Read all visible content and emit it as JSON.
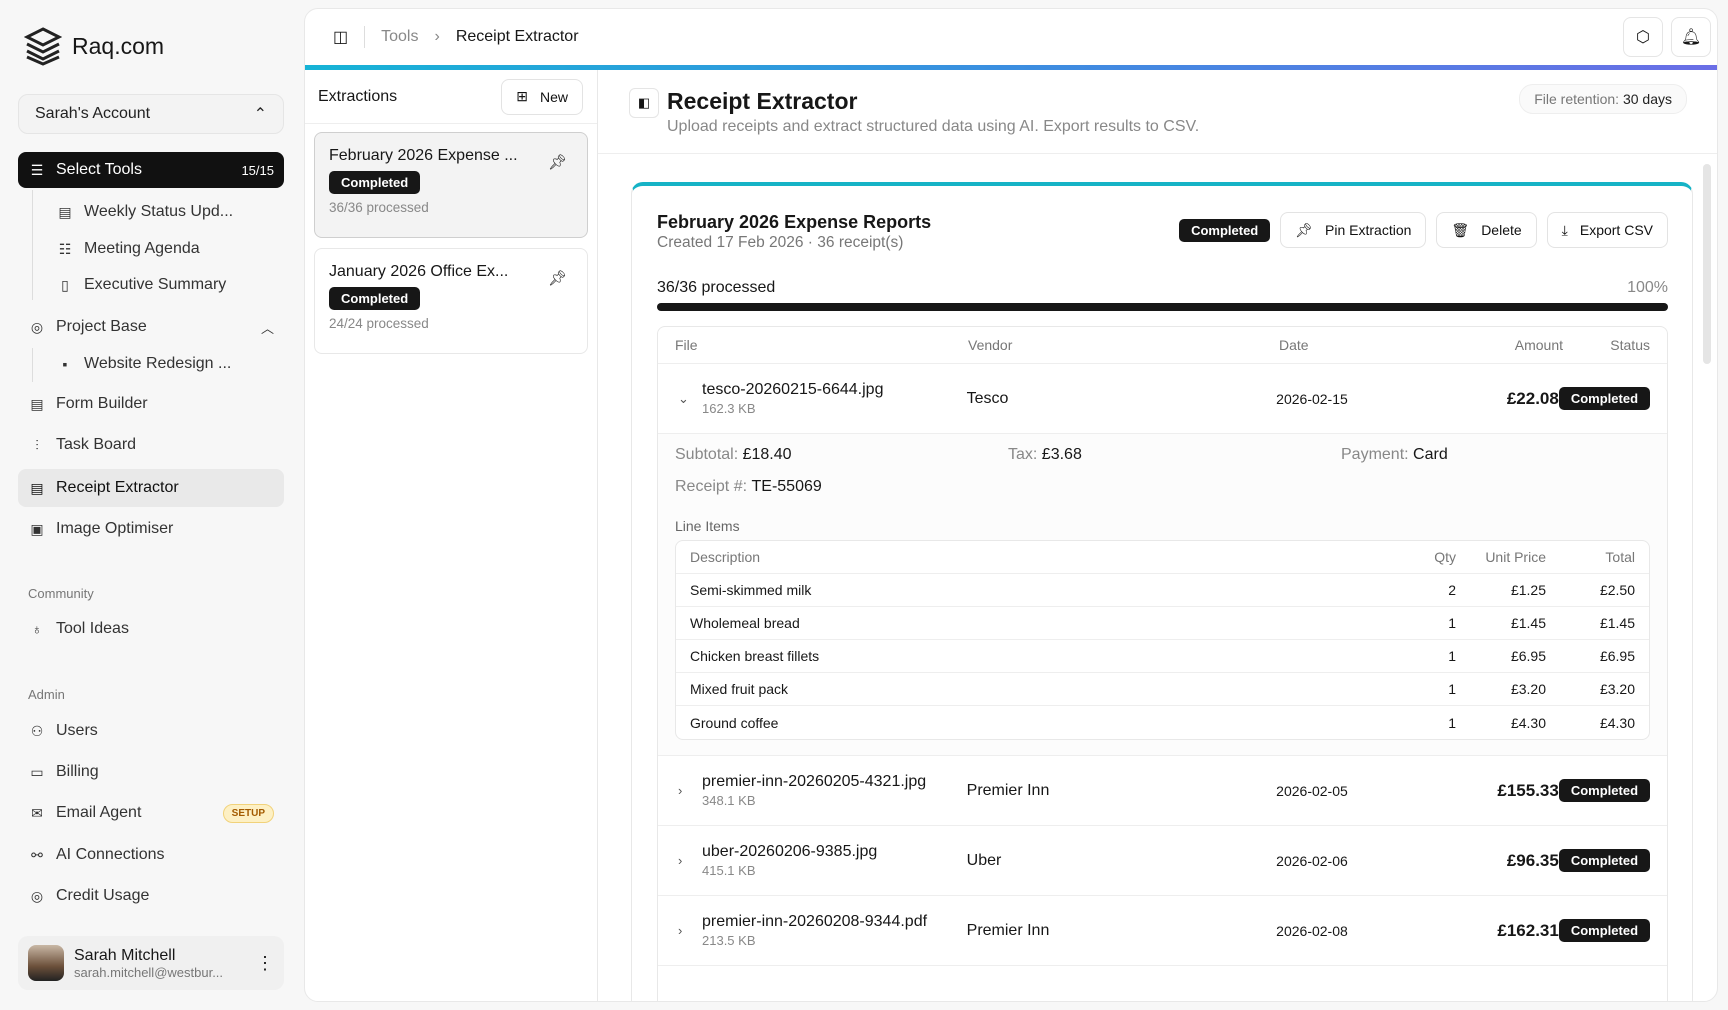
{
  "brand": "Raq.com",
  "account": "Sarah's Account",
  "nav": {
    "select_tools": {
      "label": "Select Tools",
      "count": "15/15"
    },
    "sub_tools": [
      "Weekly Status Upd...",
      "Meeting Agenda",
      "Executive Summary"
    ],
    "project_base": "Project Base",
    "project_sub": "Website Redesign ...",
    "items": [
      "Form Builder",
      "Task Board",
      "Receipt Extractor",
      "Image Optimiser"
    ],
    "community_label": "Community",
    "community": [
      "Tool Ideas"
    ],
    "admin_label": "Admin",
    "admin": [
      "Users",
      "Billing",
      "Email Agent",
      "AI Connections",
      "Credit Usage"
    ],
    "setup_badge": "SETUP"
  },
  "user": {
    "name": "Sarah Mitchell",
    "email": "sarah.mitchell@westbur..."
  },
  "breadcrumb": [
    "Tools",
    "Receipt Extractor"
  ],
  "extractions": {
    "title": "Extractions",
    "new_label": "New",
    "items": [
      {
        "title": "February 2026 Expense ...",
        "status": "Completed",
        "processed": "36/36 processed"
      },
      {
        "title": "January 2026 Office Ex...",
        "status": "Completed",
        "processed": "24/24 processed"
      }
    ]
  },
  "page": {
    "title": "Receipt Extractor",
    "description": "Upload receipts and extract structured data using AI. Export results to CSV.",
    "retention_label": "File retention:",
    "retention_value": "30 days"
  },
  "report": {
    "title": "February 2026 Expense Reports",
    "subtitle": "Created 17 Feb 2026 · 36 receipt(s)",
    "status": "Completed",
    "pin_label": "Pin Extraction",
    "delete_label": "Delete",
    "export_label": "Export CSV",
    "progress_label": "36/36 processed",
    "progress_pct": "100%",
    "progress_value": 100,
    "columns": [
      "File",
      "Vendor",
      "Date",
      "Amount",
      "Status"
    ],
    "rows": [
      {
        "file": "tesco-20260215-6644.jpg",
        "size": "162.3 KB",
        "vendor": "Tesco",
        "date": "2026-02-15",
        "amount": "£22.08",
        "status": "Completed"
      },
      {
        "file": "premier-inn-20260205-4321.jpg",
        "size": "348.1 KB",
        "vendor": "Premier Inn",
        "date": "2026-02-05",
        "amount": "£155.33",
        "status": "Completed"
      },
      {
        "file": "uber-20260206-9385.jpg",
        "size": "415.1 KB",
        "vendor": "Uber",
        "date": "2026-02-06",
        "amount": "£96.35",
        "status": "Completed"
      },
      {
        "file": "premier-inn-20260208-9344.pdf",
        "size": "213.5 KB",
        "vendor": "Premier Inn",
        "date": "2026-02-08",
        "amount": "£162.31",
        "status": "Completed"
      }
    ],
    "detail": {
      "subtotal_label": "Subtotal:",
      "subtotal": "£18.40",
      "tax_label": "Tax:",
      "tax": "£3.68",
      "payment_label": "Payment:",
      "payment": "Card",
      "receipt_label": "Receipt #:",
      "receipt": "TE-55069",
      "line_items_label": "Line Items",
      "line_columns": [
        "Description",
        "Qty",
        "Unit Price",
        "Total"
      ],
      "line_items": [
        [
          "Semi-skimmed milk",
          "2",
          "£1.25",
          "£2.50"
        ],
        [
          "Wholemeal bread",
          "1",
          "£1.45",
          "£1.45"
        ],
        [
          "Chicken breast fillets",
          "1",
          "£6.95",
          "£6.95"
        ],
        [
          "Mixed fruit pack",
          "1",
          "£3.20",
          "£3.20"
        ],
        [
          "Ground coffee",
          "1",
          "£4.30",
          "£4.30"
        ]
      ]
    }
  }
}
